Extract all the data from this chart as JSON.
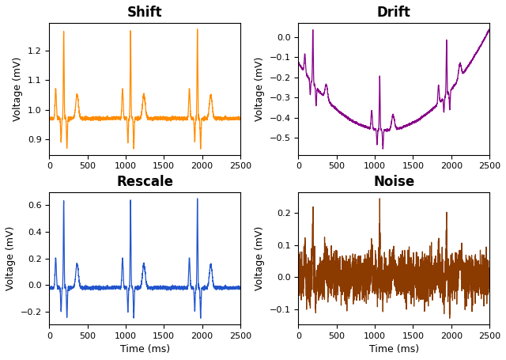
{
  "titles": [
    "Shift",
    "Drift",
    "Rescale",
    "Noise"
  ],
  "colors": [
    "#FF8C00",
    "#880088",
    "#2255CC",
    "#8B3A00"
  ],
  "xlabel": "Time (ms)",
  "ylabel": "Voltage (mV)",
  "figsize": [
    6.4,
    4.55
  ],
  "dpi": 100,
  "title_fontsize": 12,
  "axis_label_fontsize": 9,
  "tick_fontsize": 8,
  "n_samples": 2500,
  "seed": 42,
  "linewidth": 0.9
}
